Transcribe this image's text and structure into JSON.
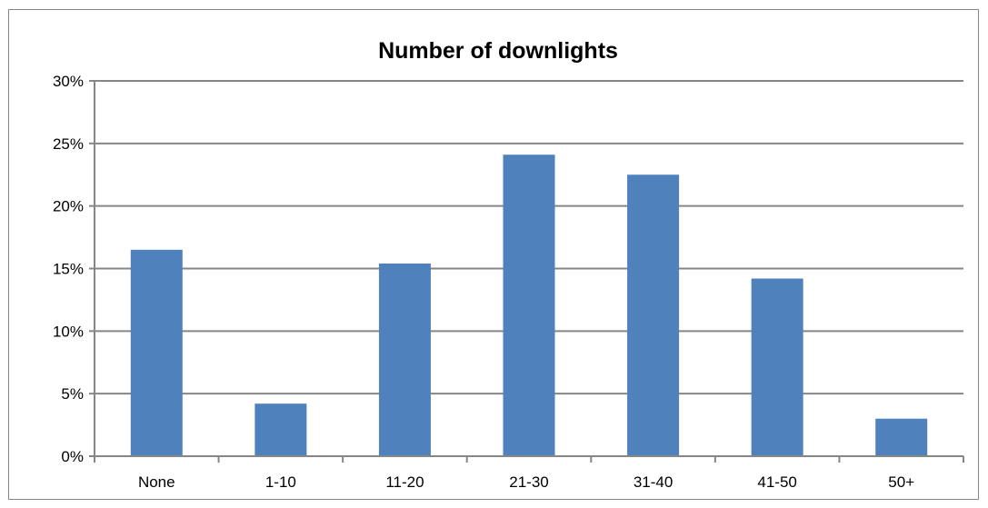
{
  "chart_data": {
    "type": "bar",
    "title": "Number of downlights",
    "xlabel": "",
    "ylabel": "",
    "categories": [
      "None",
      "1-10",
      "11-20",
      "21-30",
      "31-40",
      "41-50",
      "50+"
    ],
    "values": [
      16.5,
      4.2,
      15.4,
      24.1,
      22.5,
      14.2,
      3.0
    ],
    "value_unit": "%",
    "ylim": [
      0,
      30
    ],
    "yticks": [
      0,
      5,
      10,
      15,
      20,
      25,
      30
    ],
    "ytick_labels": [
      "0%",
      "5%",
      "10%",
      "15%",
      "20%",
      "25%",
      "30%"
    ],
    "grid": true,
    "legend": "none",
    "bar_color": "#4F81BD",
    "gridline_color": "#868686"
  }
}
